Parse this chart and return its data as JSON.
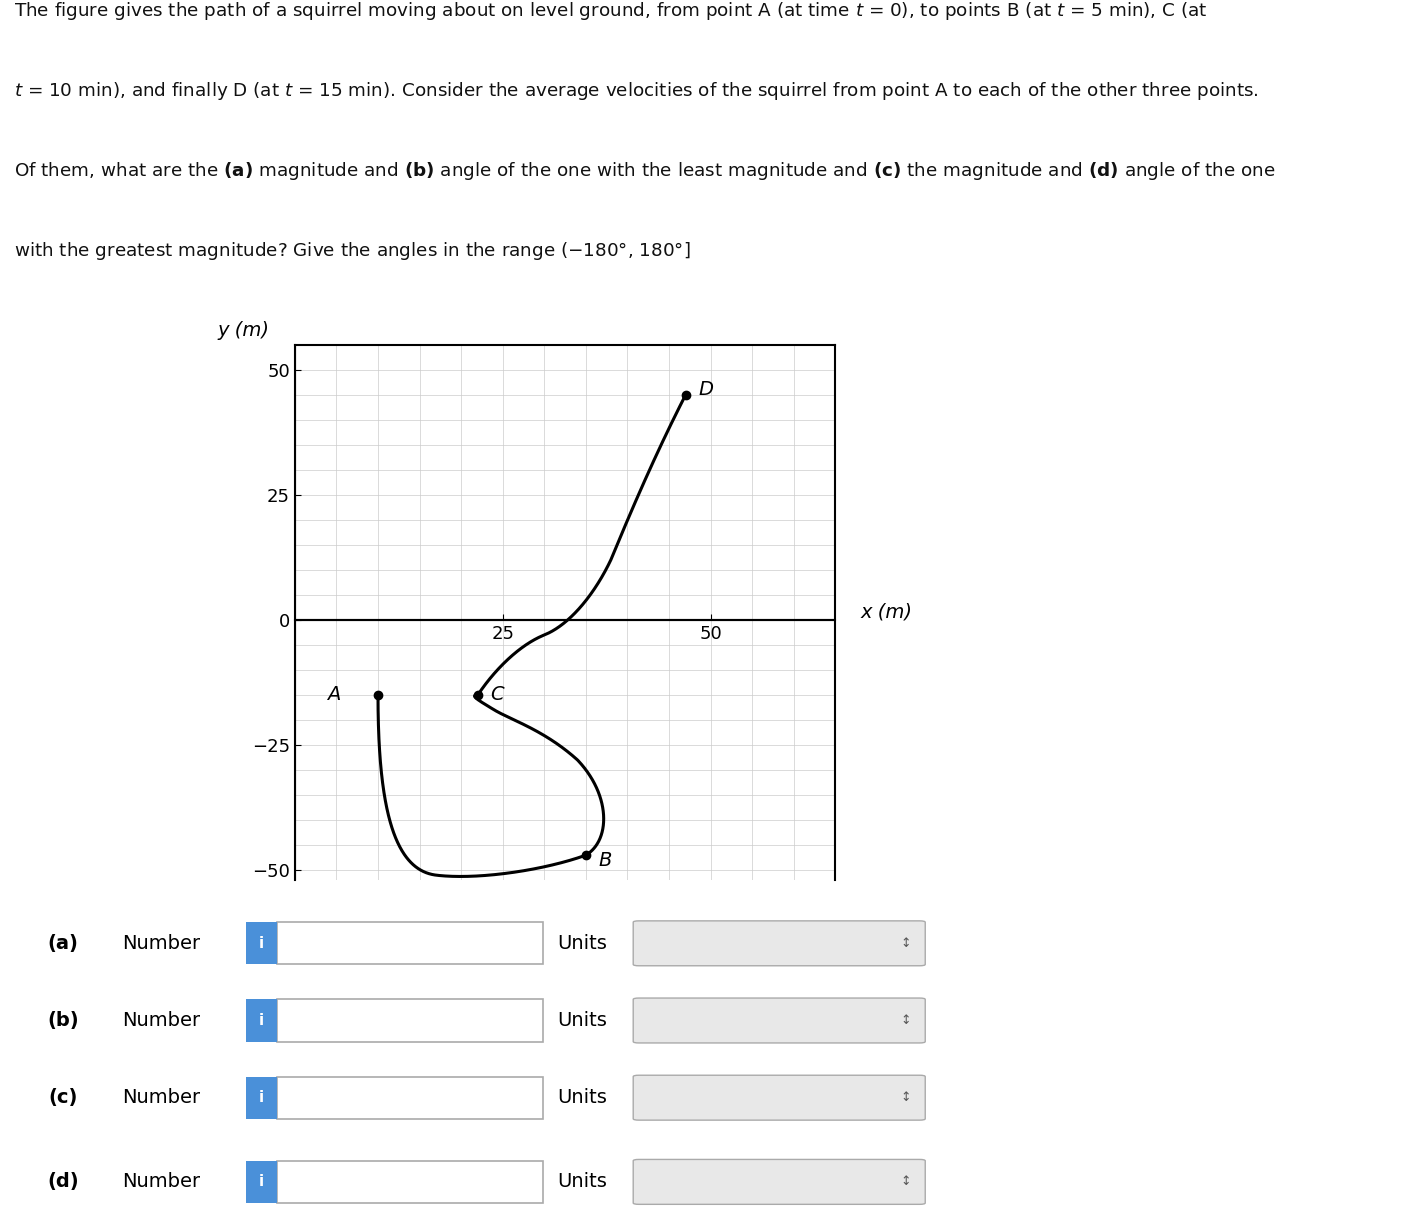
{
  "point_A": [
    10,
    -15
  ],
  "point_B": [
    35,
    -47
  ],
  "point_C": [
    22,
    -15
  ],
  "point_D": [
    47,
    45
  ],
  "xlim": [
    0,
    65
  ],
  "ylim": [
    -52,
    55
  ],
  "xticks": [
    25,
    50
  ],
  "yticks": [
    -50,
    -25,
    0,
    25,
    50
  ],
  "xlabel": "x (m)",
  "ylabel": "y (m)",
  "background_color": "#ffffff",
  "grid_color": "#cccccc",
  "path_color": "#000000",
  "label_fontsize": 14,
  "tick_fontsize": 13,
  "info_button_color": "#4a90d9"
}
